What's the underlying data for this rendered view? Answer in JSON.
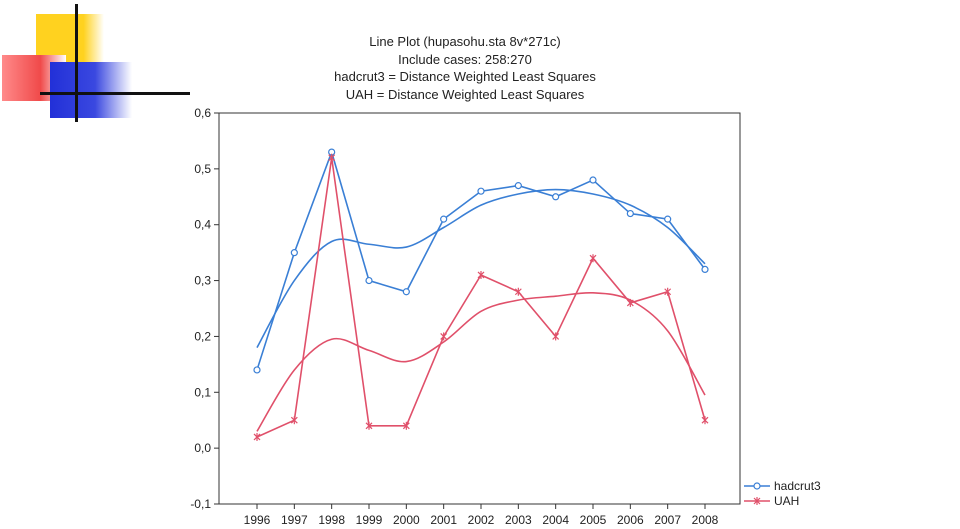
{
  "chart_data": {
    "type": "line",
    "title_lines": [
      "Line Plot (hupasohu.sta 8v*271c)",
      "Include cases: 258:270",
      "hadcrut3 = Distance Weighted Least Squares",
      "UAH = Distance Weighted Least Squares"
    ],
    "x": [
      "1996",
      "1997",
      "1998",
      "1999",
      "2000",
      "2001",
      "2002",
      "2003",
      "2004",
      "2005",
      "2006",
      "2007",
      "2008"
    ],
    "ylim": [
      -0.1,
      0.6
    ],
    "yticks": [
      "-0,1",
      "0,0",
      "0,1",
      "0,2",
      "0,3",
      "0,4",
      "0,5",
      "0,6"
    ],
    "ytick_values": [
      -0.1,
      0.0,
      0.1,
      0.2,
      0.3,
      0.4,
      0.5,
      0.6
    ],
    "grid": false,
    "legend_position": "bottom-right",
    "series": [
      {
        "name": "hadcrut3",
        "color": "#3a7fd5",
        "marker": "circle",
        "values": [
          0.14,
          0.35,
          0.53,
          0.3,
          0.28,
          0.41,
          0.46,
          0.47,
          0.45,
          0.48,
          0.42,
          0.41,
          0.32
        ],
        "smooth": [
          0.18,
          0.3,
          0.37,
          0.365,
          0.36,
          0.395,
          0.435,
          0.455,
          0.463,
          0.455,
          0.435,
          0.395,
          0.33
        ]
      },
      {
        "name": "UAH",
        "color": "#e0506a",
        "marker": "asterisk",
        "values": [
          0.02,
          0.05,
          0.52,
          0.04,
          0.04,
          0.2,
          0.31,
          0.28,
          0.2,
          0.34,
          0.26,
          0.28,
          0.05
        ],
        "smooth": [
          0.03,
          0.14,
          0.195,
          0.175,
          0.155,
          0.19,
          0.245,
          0.265,
          0.272,
          0.278,
          0.265,
          0.21,
          0.095
        ]
      }
    ]
  }
}
